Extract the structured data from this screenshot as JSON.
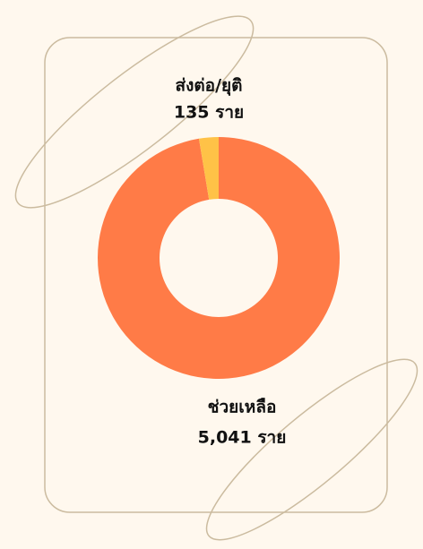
{
  "chart_data": {
    "type": "donut",
    "categories": [
      "ช่วยเหลือ",
      "ส่งต่อ/ยุติ"
    ],
    "values": [
      5041,
      135
    ],
    "value_labels": [
      "5,041 ราย",
      "135 ราย"
    ],
    "colors": [
      "#ff7b47",
      "#ffc247"
    ]
  }
}
